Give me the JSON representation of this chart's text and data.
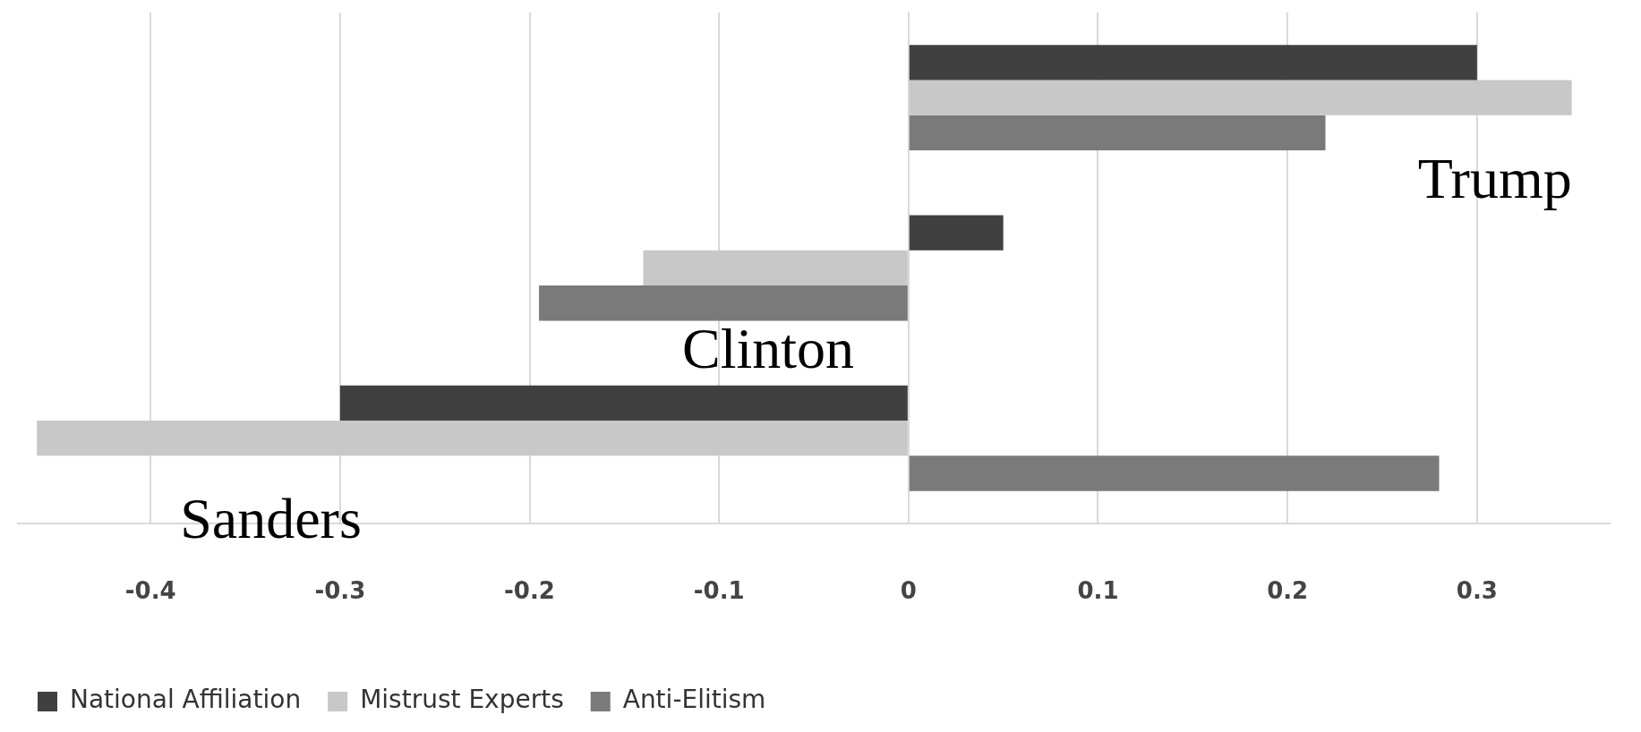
{
  "chart_data": {
    "type": "bar",
    "orientation": "horizontal",
    "categories": [
      "Trump",
      "Clinton",
      "Sanders"
    ],
    "series": [
      {
        "name": "National Affiliation",
        "color": "#404040",
        "values": [
          0.3,
          0.05,
          -0.3
        ]
      },
      {
        "name": "Mistrust Experts",
        "color": "#c8c8c8",
        "values": [
          0.35,
          -0.14,
          -0.46
        ]
      },
      {
        "name": "Anti-Elitism",
        "color": "#7a7a7a",
        "values": [
          0.22,
          -0.195,
          0.28
        ]
      }
    ],
    "xlim": [
      -0.47,
      0.37
    ],
    "xticks": [
      -0.4,
      -0.3,
      -0.2,
      -0.1,
      0,
      0.1,
      0.2,
      0.3
    ],
    "grid": "x",
    "legend": "bottom left",
    "tick_labels": "x"
  }
}
